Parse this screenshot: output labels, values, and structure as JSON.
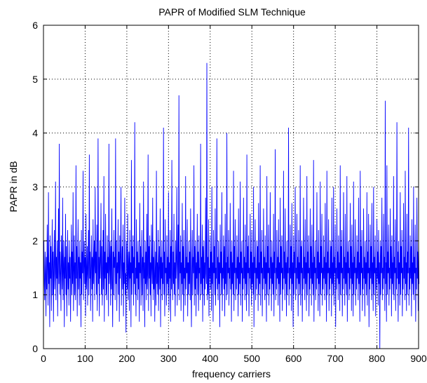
{
  "chart_data": {
    "type": "line",
    "title": "PAPR of Modified SLM Technique",
    "xlabel": "frequency carriers",
    "ylabel": "PAPR in dB",
    "xlim": [
      0,
      900
    ],
    "ylim": [
      0,
      6
    ],
    "xticks": [
      0,
      100,
      200,
      300,
      400,
      500,
      600,
      700,
      800,
      900
    ],
    "yticks": [
      0,
      1,
      2,
      3,
      4,
      5,
      6
    ],
    "grid": true,
    "grid_style": "dotted",
    "colors": {
      "series": "#0000ff",
      "axes": "#000000",
      "grid": "#000000",
      "background": "#ffffff"
    },
    "series": [
      {
        "x_start": 1,
        "x_step": 1,
        "values": [
          2.0,
          1.2,
          0.9,
          1.8,
          1.4,
          0.6,
          1.7,
          1.1,
          2.3,
          1.5,
          0.8,
          2.9,
          1.2,
          1.6,
          0.4,
          2.1,
          1.3,
          1.9,
          0.7,
          1.5,
          2.4,
          1.0,
          1.8,
          0.5,
          1.6,
          2.2,
          1.1,
          1.4,
          3.1,
          0.9,
          1.7,
          1.3,
          2.0,
          0.6,
          1.5,
          2.6,
          1.2,
          3.8,
          1.0,
          1.8,
          1.4,
          0.7,
          2.1,
          1.6,
          1.1,
          2.8,
          0.9,
          1.5,
          2.0,
          0.4,
          1.7,
          1.3,
          2.5,
          1.0,
          1.9,
          0.6,
          1.4,
          2.2,
          1.1,
          1.6,
          0.8,
          2.0,
          1.3,
          1.7,
          0.5,
          1.5,
          2.3,
          1.0,
          1.8,
          1.2,
          2.9,
          0.7,
          1.4,
          2.1,
          1.0,
          1.6,
          0.9,
          3.4,
          1.3,
          1.9,
          0.6,
          1.5,
          2.4,
          1.1,
          1.7,
          0.8,
          2.0,
          1.3,
          1.6,
          0.4,
          2.2,
          1.0,
          1.8,
          1.4,
          3.3,
          0.9,
          1.5,
          2.0,
          1.2,
          1.7,
          0.6,
          2.5,
          1.1,
          1.4,
          1.9,
          0.8,
          1.6,
          2.2,
          1.0,
          3.6,
          1.3,
          1.8,
          0.7,
          1.5,
          2.1,
          1.1,
          1.7,
          0.5,
          2.4,
          1.2,
          1.6,
          2.0,
          0.9,
          3.0,
          1.4,
          1.8,
          1.0,
          2.3,
          0.7,
          1.5,
          3.9,
          1.2,
          1.7,
          0.6,
          2.0,
          1.3,
          1.6,
          2.7,
          1.0,
          1.9,
          0.8,
          1.4,
          2.2,
          1.1,
          3.2,
          0.5,
          1.8,
          1.3,
          2.5,
          1.0,
          1.6,
          0.9,
          2.1,
          1.4,
          1.7,
          0.6,
          3.8,
          1.2,
          1.5,
          2.0,
          0.8,
          1.9,
          1.1,
          2.6,
          1.3,
          0.4,
          1.8,
          1.0,
          2.2,
          1.5,
          1.7,
          0.9,
          3.9,
          1.2,
          2.0,
          0.7,
          1.6,
          1.4,
          2.4,
          1.0,
          1.8,
          0.5,
          2.1,
          1.3,
          1.7,
          3.0,
          0.8,
          1.5,
          1.9,
          1.1,
          2.3,
          0.6,
          1.6,
          1.2,
          2.8,
          1.0,
          1.4,
          0.3,
          2.0,
          1.7,
          1.1,
          2.5,
          0.9,
          1.5,
          1.8,
          0.7,
          2.2,
          1.3,
          1.6,
          0.4,
          3.5,
          1.0,
          1.9,
          1.4,
          2.1,
          0.8,
          1.7,
          1.2,
          4.2,
          1.0,
          1.5,
          0.6,
          2.4,
          1.3,
          1.8,
          0.9,
          2.0,
          1.1,
          1.6,
          0.5,
          2.7,
          1.4,
          1.9,
          0.8,
          1.5,
          2.2,
          1.0,
          1.7,
          0.7,
          3.1,
          1.3,
          1.6,
          0.4,
          2.0,
          1.2,
          1.8,
          0.9,
          2.5,
          1.1,
          1.4,
          3.6,
          0.7,
          1.9,
          1.3,
          2.1,
          1.0,
          1.6,
          0.6,
          2.3,
          1.5,
          1.2,
          2.8,
          0.9,
          1.7,
          1.1,
          2.0,
          0.5,
          1.4,
          1.8,
          0.8,
          3.3,
          1.2,
          1.6,
          1.0,
          2.2,
          0.7,
          1.5,
          1.9,
          1.1,
          2.6,
          0.4,
          1.7,
          1.3,
          2.0,
          0.9,
          1.6,
          1.2,
          4.1,
          1.0,
          1.8,
          0.6,
          2.4,
          1.4,
          1.5,
          0.8,
          2.1,
          1.2,
          1.7,
          1.0,
          2.9,
          0.7,
          1.6,
          1.3,
          2.2,
          0.5,
          1.9,
          1.1,
          3.5,
          1.4,
          0.9,
          1.8,
          1.2,
          2.5,
          1.0,
          1.6,
          0.6,
          2.0,
          1.3,
          1.7,
          3.0,
          0.8,
          1.5,
          2.3,
          1.1,
          4.7,
          0.9,
          1.8,
          1.4,
          2.1,
          0.7,
          1.6,
          1.2,
          2.7,
          1.0,
          1.9,
          0.5,
          2.2,
          1.3,
          1.5,
          0.8,
          3.2,
          1.1,
          1.7,
          1.4,
          2.4,
          0.6,
          1.6,
          1.0,
          2.0,
          1.2,
          1.8,
          0.9,
          2.6,
          1.3,
          0.4,
          1.5,
          2.2,
          1.0,
          1.7,
          1.4,
          3.4,
          0.8,
          1.9,
          1.1,
          2.0,
          0.6,
          1.6,
          1.3,
          2.5,
          1.0,
          1.8,
          0.7,
          2.1,
          1.4,
          1.5,
          0.9,
          3.8,
          1.2,
          1.7,
          1.0,
          2.3,
          0.5,
          1.9,
          1.3,
          2.0,
          0.8,
          1.6,
          1.1,
          2.8,
          1.4,
          1.2,
          5.3,
          0.9,
          1.7,
          1.0,
          2.4,
          0.6,
          1.5,
          1.3,
          2.1,
          1.1,
          1.8,
          0.7,
          3.0,
          1.2,
          1.6,
          0.5,
          2.2,
          1.4,
          1.9,
          1.0,
          2.6,
          0.8,
          1.5,
          1.3,
          3.9,
          1.1,
          1.7,
          0.9,
          2.0,
          1.2,
          1.6,
          0.4,
          2.3,
          1.4,
          1.8,
          1.0,
          2.9,
          0.7,
          1.5,
          1.3,
          2.1,
          1.1,
          1.9,
          0.6,
          2.5,
          1.2,
          1.6,
          0.9,
          4.0,
          1.0,
          1.7,
          1.4,
          2.2,
          0.8,
          1.5,
          1.3,
          2.7,
          1.1,
          1.8,
          0.5,
          2.0,
          1.2,
          1.6,
          1.0,
          3.3,
          0.7,
          1.9,
          1.4,
          2.4,
          0.9,
          1.5,
          1.1,
          2.1,
          1.3,
          1.7,
          0.6,
          2.6,
          1.0,
          1.6,
          1.2,
          3.1,
          0.8,
          1.8,
          1.4,
          2.0,
          0.5,
          1.5,
          1.1,
          2.8,
          1.3,
          1.7,
          0.9,
          2.3,
          1.2,
          1.6,
          0.7,
          3.6,
          1.0,
          1.9,
          1.4,
          2.1,
          0.6,
          1.5,
          1.3,
          2.5,
          1.1,
          1.8,
          0.8,
          2.2,
          1.2,
          1.6,
          1.0,
          3.0,
          0.4,
          1.7,
          1.4,
          2.4,
          0.9,
          1.5,
          1.1,
          2.0,
          1.3,
          1.9,
          0.7,
          2.7,
          1.0,
          1.6,
          1.2,
          3.4,
          0.8,
          1.8,
          1.4,
          2.2,
          0.6,
          1.5,
          1.1,
          2.6,
          1.3,
          1.7,
          0.9,
          2.1,
          1.2,
          1.6,
          0.5,
          3.2,
          1.0,
          1.9,
          1.4,
          2.3,
          0.8,
          1.5,
          1.1,
          2.9,
          1.3,
          1.7,
          0.7,
          2.0,
          1.2,
          1.6,
          1.0,
          2.5,
          0.6,
          1.8,
          1.4,
          3.7,
          0.9,
          1.5,
          1.1,
          2.2,
          1.3,
          1.7,
          0.8,
          2.4,
          1.2,
          1.6,
          0.5,
          2.8,
          1.0,
          1.9,
          1.4,
          2.1,
          0.7,
          1.5,
          1.1,
          3.3,
          1.3,
          1.8,
          0.9,
          2.6,
          1.2,
          1.6,
          0.6,
          2.0,
          1.0,
          1.7,
          1.4,
          4.1,
          0.8,
          1.5,
          1.1,
          2.3,
          1.3,
          1.9,
          0.7,
          2.7,
          1.2,
          1.6,
          0.4,
          2.1,
          1.0,
          1.8,
          1.4,
          3.0,
          0.9,
          1.5,
          1.1,
          2.5,
          1.3,
          1.7,
          0.6,
          2.2,
          1.2,
          1.6,
          1.0,
          3.4,
          0.8,
          1.9,
          1.4,
          2.0,
          0.5,
          1.5,
          1.1,
          2.8,
          1.3,
          1.7,
          0.9,
          2.4,
          1.2,
          1.6,
          0.7,
          3.2,
          1.0,
          1.8,
          1.4,
          2.1,
          0.6,
          1.5,
          1.1,
          2.6,
          1.3,
          1.9,
          0.8,
          2.3,
          1.2,
          1.6,
          1.0,
          3.5,
          0.5,
          1.7,
          1.4,
          2.0,
          0.9,
          1.5,
          1.1,
          2.9,
          1.3,
          1.8,
          0.7,
          2.2,
          1.2,
          1.6,
          0.6,
          3.1,
          1.0,
          1.9,
          1.4,
          2.5,
          0.8,
          1.5,
          1.1,
          2.1,
          1.3,
          1.7,
          0.9,
          2.7,
          1.2,
          1.6,
          0.5,
          3.3,
          1.0,
          1.8,
          1.4,
          2.4,
          0.7,
          1.5,
          1.1,
          2.0,
          1.3,
          1.9,
          0.6,
          2.8,
          1.2,
          1.6,
          1.0,
          3.0,
          0.8,
          1.7,
          1.4,
          2.3,
          0.4,
          1.5,
          1.1,
          2.6,
          1.3,
          1.8,
          0.9,
          2.1,
          1.2,
          1.6,
          0.7,
          3.4,
          1.0,
          1.9,
          1.4,
          2.2,
          0.6,
          1.5,
          1.1,
          2.9,
          1.3,
          1.7,
          0.8,
          2.5,
          1.2,
          1.6,
          1.0,
          3.2,
          0.5,
          1.8,
          1.4,
          2.0,
          0.9,
          1.5,
          1.1,
          2.7,
          1.3,
          1.9,
          0.7,
          2.3,
          1.2,
          1.6,
          0.6,
          3.1,
          1.0,
          1.7,
          1.4,
          2.4,
          0.8,
          1.5,
          1.1,
          2.1,
          1.3,
          1.8,
          0.9,
          2.8,
          1.2,
          1.6,
          0.5,
          3.3,
          1.0,
          1.9,
          1.4,
          2.2,
          0.7,
          1.5,
          1.1,
          2.6,
          1.3,
          1.7,
          0.6,
          2.0,
          1.2,
          1.6,
          1.0,
          2.9,
          0.8,
          1.8,
          1.4,
          2.5,
          0.4,
          1.5,
          1.1,
          2.3,
          1.3,
          1.9,
          0.9,
          2.7,
          1.2,
          1.6,
          0.7,
          3.0,
          1.0,
          1.7,
          1.4,
          2.1,
          0.6,
          1.5,
          1.1,
          2.4,
          1.3,
          1.8,
          0.8,
          2.2,
          1.2,
          1.6,
          0.0,
          2.0,
          1.0,
          1.9,
          1.4,
          2.8,
          0.9,
          1.5,
          1.1,
          2.5,
          1.3,
          1.7,
          0.7,
          4.6,
          1.2,
          1.6,
          0.5,
          3.4,
          1.0,
          1.8,
          1.4,
          2.3,
          0.8,
          1.5,
          1.1,
          2.6,
          1.3,
          1.9,
          0.6,
          2.1,
          1.2,
          1.6,
          1.0,
          3.2,
          0.9,
          1.7,
          1.4,
          2.4,
          0.7,
          1.5,
          1.1,
          4.2,
          1.3,
          1.8,
          0.5,
          2.0,
          1.2,
          1.6,
          0.8,
          2.9,
          1.0,
          1.9,
          1.4,
          2.2,
          0.6,
          1.5,
          1.1,
          2.7,
          1.3,
          1.7,
          0.9,
          3.3,
          1.2,
          1.6,
          0.7,
          2.5,
          1.0,
          1.8,
          1.4,
          4.1,
          0.8,
          1.5,
          1.1,
          2.1,
          1.3,
          1.9,
          0.6,
          2.4,
          1.2,
          1.6,
          1.0,
          3.0,
          0.9,
          1.7,
          1.4,
          2.3,
          0.5,
          1.5,
          1.1,
          2.8,
          1.3,
          1.8,
          0.7,
          2.0,
          1.2
        ]
      }
    ]
  }
}
